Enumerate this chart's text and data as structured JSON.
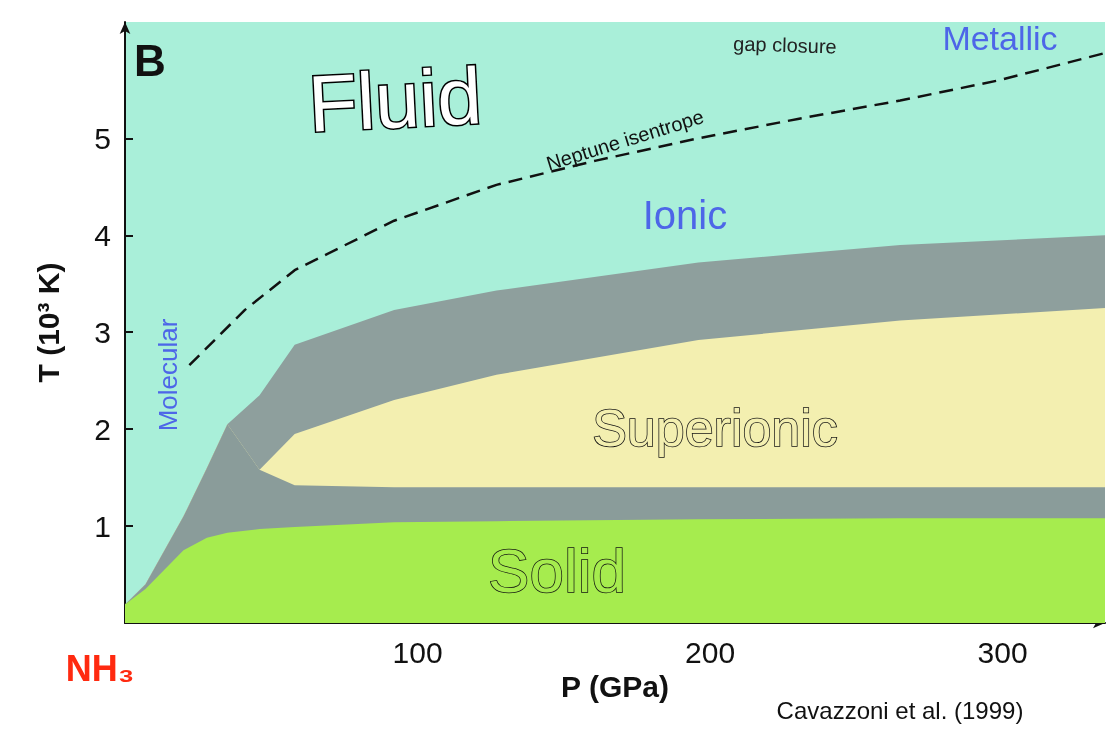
{
  "chart_data": {
    "type": "area",
    "stacked": true,
    "xlabel": "P (GPa)",
    "ylabel": "T (10³ K)",
    "xlim": [
      0,
      335
    ],
    "ylim": [
      0,
      6.2
    ],
    "xticks": [
      100,
      200,
      300
    ],
    "yticks": [
      1,
      2,
      3,
      4,
      5
    ],
    "x": [
      0,
      7,
      20,
      28,
      35,
      46,
      58,
      92,
      127,
      196,
      265,
      335
    ],
    "series": [
      {
        "color": "#a6ec4e",
        "values": [
          0.19,
          0.35,
          0.75,
          0.88,
          0.93,
          0.97,
          0.99,
          1.04,
          1.05,
          1.07,
          1.08,
          1.08
        ]
      },
      {
        "color": "#8a9c9a",
        "values": [
          0,
          0.05,
          0.35,
          0.72,
          1.12,
          0.61,
          0.43,
          0.36,
          0.35,
          0.33,
          0.32,
          0.32
        ]
      },
      {
        "color": "#f3efb0",
        "values": [
          0,
          0,
          0,
          0,
          0,
          0,
          0.53,
          0.9,
          1.16,
          1.52,
          1.72,
          1.85
        ]
      },
      {
        "color": "#8e9f9d",
        "values": [
          0,
          0,
          0,
          0,
          0,
          0.77,
          0.92,
          0.93,
          0.87,
          0.8,
          0.78,
          0.75
        ]
      },
      {
        "type": "line",
        "color": "#111111",
        "line_style": "dashed",
        "marker": "none",
        "x": [
          22,
          41,
          58,
          92,
          127,
          161,
          196,
          230,
          265,
          299,
          335
        ],
        "values": [
          2.66,
          3.23,
          3.64,
          4.15,
          4.52,
          4.77,
          5.0,
          5.2,
          5.39,
          5.6,
          5.88
        ]
      }
    ],
    "annotations": [
      "B",
      "Fluid",
      "gap closure",
      "Metallic",
      "Neptune isentrope",
      "Ionic",
      "Molecular",
      "Superionic",
      "Solid",
      "NH₃",
      "Cavazzoni et al. (1999)"
    ]
  }
}
